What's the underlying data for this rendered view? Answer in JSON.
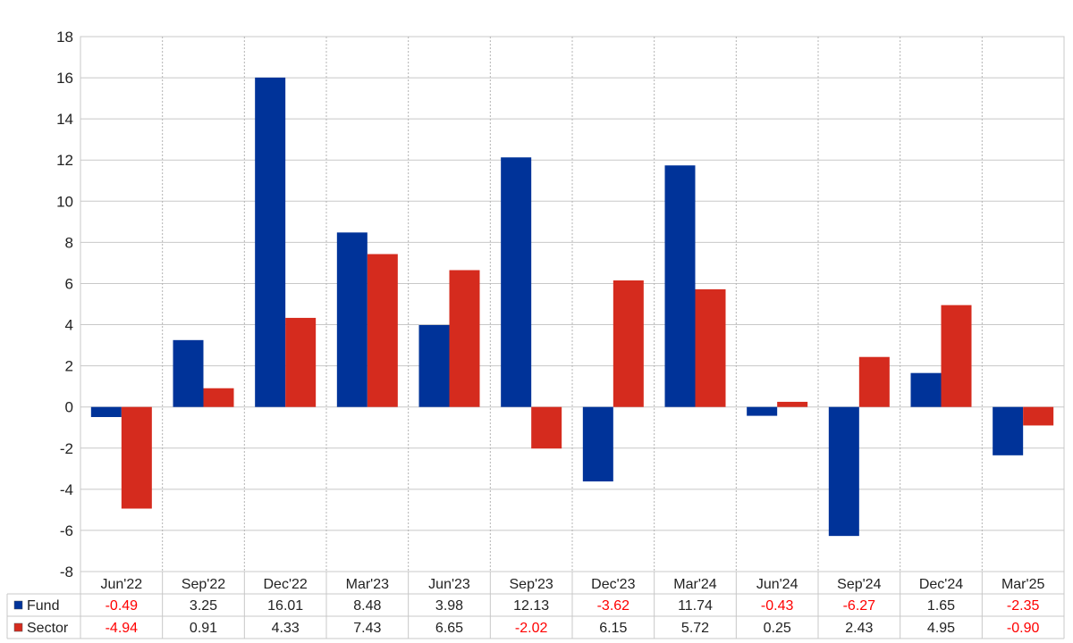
{
  "chart_data": {
    "type": "bar",
    "categories": [
      "Jun'22",
      "Sep'22",
      "Dec'22",
      "Mar'23",
      "Jun'23",
      "Sep'23",
      "Dec'23",
      "Mar'24",
      "Jun'24",
      "Sep'24",
      "Dec'24",
      "Mar'25"
    ],
    "series": [
      {
        "name": "Fund",
        "color": "#003399",
        "values": [
          -0.49,
          3.25,
          16.01,
          8.48,
          3.98,
          12.13,
          -3.62,
          11.74,
          -0.43,
          -6.27,
          1.65,
          -2.35
        ],
        "labels": [
          "-0.49",
          "3.25",
          "16.01",
          "8.48",
          "3.98",
          "12.13",
          "-3.62",
          "11.74",
          "-0.43",
          "-6.27",
          "1.65",
          "-2.35"
        ]
      },
      {
        "name": "Sector",
        "color": "#d52b1e",
        "values": [
          -4.94,
          0.91,
          4.33,
          7.43,
          6.65,
          -2.02,
          6.15,
          5.72,
          0.25,
          2.43,
          4.95,
          -0.9
        ],
        "labels": [
          "-4.94",
          "0.91",
          "4.33",
          "7.43",
          "6.65",
          "-2.02",
          "6.15",
          "5.72",
          "0.25",
          "2.43",
          "4.95",
          "-0.90"
        ]
      }
    ],
    "ylim": [
      -8,
      18
    ],
    "yticks": [
      "-8",
      "-6",
      "-4",
      "-2",
      "0",
      "2",
      "4",
      "6",
      "8",
      "10",
      "12",
      "14",
      "16",
      "18"
    ],
    "grid": true,
    "legend": "data-table-left",
    "negative_color": "#ff0000",
    "positive_color": "#222222"
  }
}
